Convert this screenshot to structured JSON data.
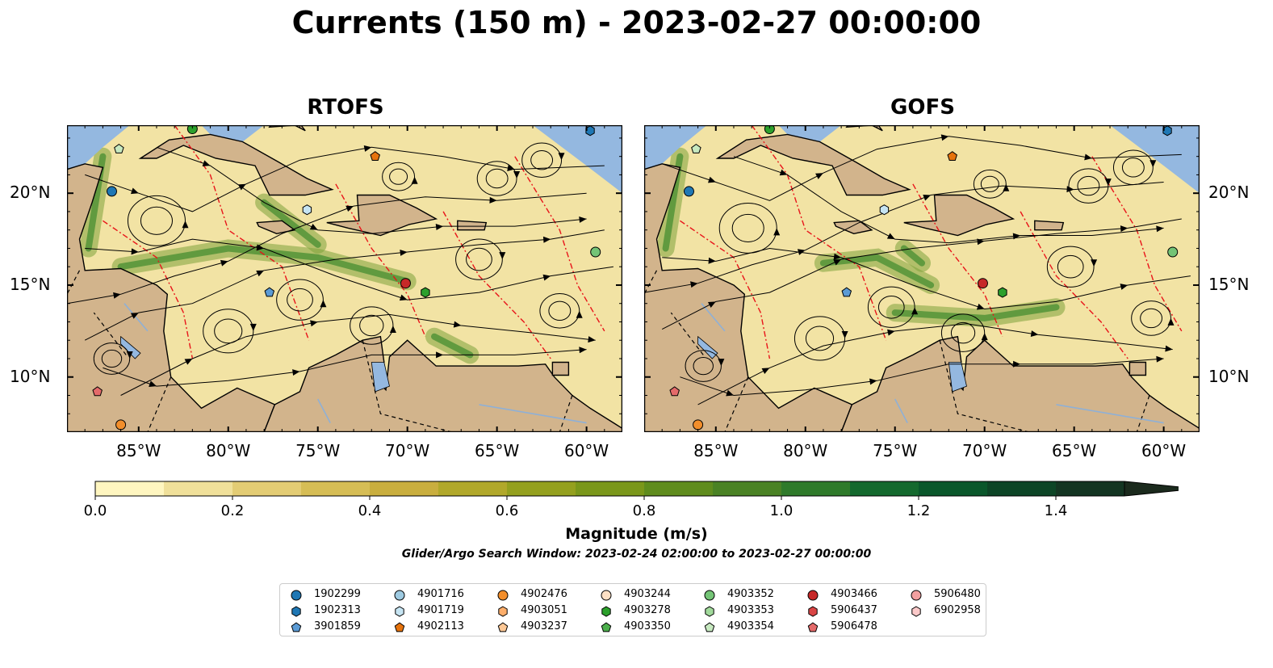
{
  "title": "Currents (150 m) - 2023-02-27 00:00:00",
  "panels": [
    {
      "title": "RTOFS"
    },
    {
      "title": "GOFS"
    }
  ],
  "axes": {
    "x_ticks": [
      "85°W",
      "80°W",
      "75°W",
      "70°W",
      "65°W",
      "60°W"
    ],
    "x_values": [
      -85,
      -80,
      -75,
      -70,
      -65,
      -60
    ],
    "y_ticks": [
      "20°N",
      "15°N",
      "10°N"
    ],
    "y_values": [
      20,
      15,
      10
    ],
    "lon_range": [
      -89,
      -58
    ],
    "lat_range": [
      7,
      23.7
    ]
  },
  "colorbar": {
    "label": "Magnitude (m/s)",
    "ticks": [
      "0.0",
      "0.2",
      "0.4",
      "0.6",
      "0.8",
      "1.0",
      "1.2",
      "1.4"
    ],
    "tick_values": [
      0.0,
      0.2,
      0.4,
      0.6,
      0.8,
      1.0,
      1.2,
      1.4
    ],
    "range": [
      0,
      1.5
    ],
    "extend": "max",
    "colors": [
      "#fff6c0",
      "#f0e09a",
      "#e3cc74",
      "#d6bd55",
      "#c9ae3e",
      "#b1a82a",
      "#94a01e",
      "#7a971a",
      "#5f8c1d",
      "#4a8224",
      "#2f7a2a",
      "#14692e",
      "#0a572b",
      "#0d4526",
      "#143522",
      "#1b2a1d"
    ]
  },
  "search_window": "Glider/Argo Search Window: 2023-02-24 02:00:00 to 2023-02-27 00:00:00",
  "legend": [
    {
      "id": "1902299",
      "marker": "circle",
      "color": "#1f77b4"
    },
    {
      "id": "1902313",
      "marker": "hexagon",
      "color": "#1f77b4"
    },
    {
      "id": "3901859",
      "marker": "pentagon",
      "color": "#5b9bd5"
    },
    {
      "id": "4901716",
      "marker": "circle",
      "color": "#9ecae1"
    },
    {
      "id": "4901719",
      "marker": "hexagon",
      "color": "#c6e4f2"
    },
    {
      "id": "4902113",
      "marker": "pentagon",
      "color": "#e6730d"
    },
    {
      "id": "4902476",
      "marker": "circle",
      "color": "#f28e2b"
    },
    {
      "id": "4903051",
      "marker": "hexagon",
      "color": "#fdae6b"
    },
    {
      "id": "4903237",
      "marker": "pentagon",
      "color": "#fdc896"
    },
    {
      "id": "4903244",
      "marker": "circle",
      "color": "#fde0c5"
    },
    {
      "id": "4903278",
      "marker": "hexagon",
      "color": "#2ca02c"
    },
    {
      "id": "4903350",
      "marker": "pentagon",
      "color": "#4caf4c"
    },
    {
      "id": "4903352",
      "marker": "circle",
      "color": "#74c476"
    },
    {
      "id": "4903353",
      "marker": "hexagon",
      "color": "#a1d99b"
    },
    {
      "id": "4903354",
      "marker": "pentagon",
      "color": "#c7e9c0"
    },
    {
      "id": "4903466",
      "marker": "circle",
      "color": "#c62828"
    },
    {
      "id": "5906437",
      "marker": "hexagon",
      "color": "#d94545"
    },
    {
      "id": "5906478",
      "marker": "pentagon",
      "color": "#e46a6a"
    },
    {
      "id": "5906480",
      "marker": "circle",
      "color": "#f2a0a0"
    },
    {
      "id": "6902958",
      "marker": "hexagon",
      "color": "#fbc9c9"
    }
  ],
  "floats": [
    {
      "marker": "circle",
      "color": "#1f77b4",
      "lon": -86.5,
      "lat": 20.1
    },
    {
      "marker": "pentagon",
      "color": "#c7e9c0",
      "lon": -86.1,
      "lat": 22.4
    },
    {
      "marker": "circle",
      "color": "#2ca02c",
      "lon": -82.0,
      "lat": 23.5
    },
    {
      "marker": "pentagon",
      "color": "#e6730d",
      "lon": -71.8,
      "lat": 22.0
    },
    {
      "marker": "hexagon",
      "color": "#1f77b4",
      "lon": -59.8,
      "lat": 23.4
    },
    {
      "marker": "hexagon",
      "color": "#c6e4f2",
      "lon": -75.6,
      "lat": 19.1
    },
    {
      "marker": "pentagon",
      "color": "#5b9bd5",
      "lon": -77.7,
      "lat": 14.6
    },
    {
      "marker": "circle",
      "color": "#c62828",
      "lon": -70.1,
      "lat": 15.1
    },
    {
      "marker": "hexagon",
      "color": "#2ca02c",
      "lon": -69.0,
      "lat": 14.6
    },
    {
      "marker": "circle",
      "color": "#74c476",
      "lon": -59.5,
      "lat": 16.8
    },
    {
      "marker": "pentagon",
      "color": "#e46a6a",
      "lon": -87.3,
      "lat": 9.2
    },
    {
      "marker": "circle",
      "color": "#f28e2b",
      "lon": -86.0,
      "lat": 7.4
    }
  ]
}
